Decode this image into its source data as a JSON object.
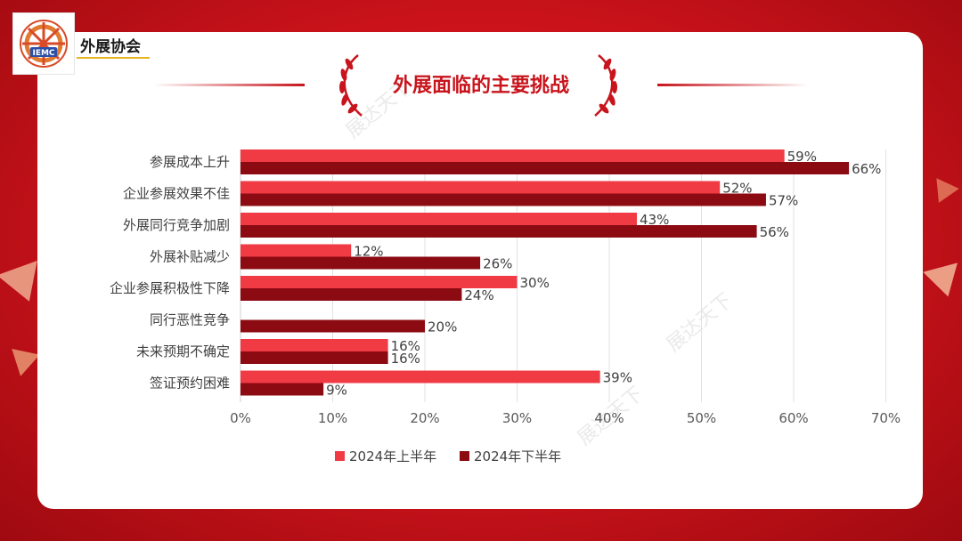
{
  "brand": {
    "name": "外展协会",
    "logo_text": "IEMC"
  },
  "page_title": "外展面临的主要挑战",
  "watermark_text": "展达天下",
  "colors": {
    "series1": "#f03a44",
    "series2": "#8c0a12",
    "accent": "#c8141c"
  },
  "chart_data": {
    "type": "bar",
    "orientation": "horizontal",
    "categories": [
      "参展成本上升",
      "企业参展效果不佳",
      "外展同行竞争加剧",
      "外展补贴减少",
      "企业参展积极性下降",
      "同行恶性竞争",
      "未来预期不确定",
      "签证预约困难"
    ],
    "series": [
      {
        "name": "2024年上半年",
        "values": [
          59,
          52,
          43,
          12,
          30,
          0,
          16,
          39
        ],
        "labels": [
          "59%",
          "52%",
          "43%",
          "12%",
          "30%",
          "",
          "16%",
          "39%"
        ]
      },
      {
        "name": "2024年下半年",
        "values": [
          66,
          57,
          56,
          26,
          24,
          20,
          16,
          9
        ],
        "labels": [
          "66%",
          "57%",
          "56%",
          "26%",
          "24%",
          "20%",
          "16%",
          "9%"
        ]
      }
    ],
    "xlim": [
      0,
      70
    ],
    "x_ticks": [
      "0%",
      "10%",
      "20%",
      "30%",
      "40%",
      "50%",
      "60%",
      "70%"
    ],
    "grid": true,
    "legend_position": "bottom"
  }
}
